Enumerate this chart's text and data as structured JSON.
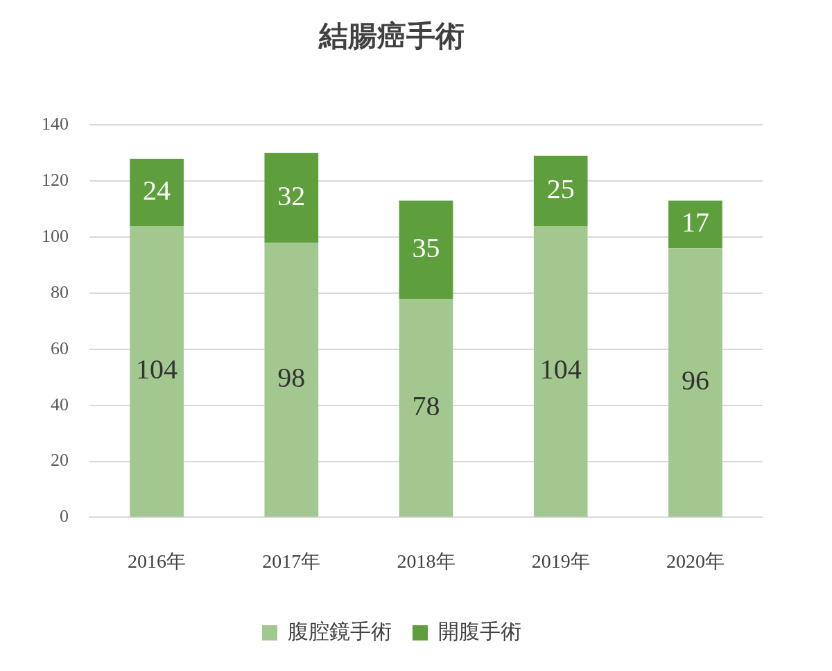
{
  "chart_data": {
    "type": "bar",
    "title": "結腸癌手術",
    "stacked": true,
    "categories": [
      "2016年",
      "2017年",
      "2018年",
      "2019年",
      "2020年"
    ],
    "series": [
      {
        "name": "腹腔鏡手術",
        "color": "#a2c78f",
        "values": [
          104,
          98,
          78,
          104,
          96
        ]
      },
      {
        "name": "開腹手術",
        "color": "#5e9e3c",
        "values": [
          24,
          32,
          35,
          25,
          17
        ]
      }
    ],
    "ylim": [
      0,
      140
    ],
    "yticks": [
      0,
      20,
      40,
      60,
      80,
      100,
      120,
      140
    ],
    "grid": "y",
    "legend": "bottom",
    "data_labels": true
  }
}
